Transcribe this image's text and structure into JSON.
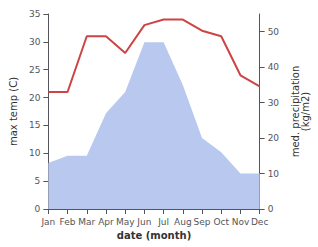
{
  "chart_data": {
    "type": "line",
    "categories": [
      "Jan",
      "Feb",
      "Mar",
      "Apr",
      "May",
      "Jun",
      "Jul",
      "Aug",
      "Sep",
      "Oct",
      "Nov",
      "Dec"
    ],
    "series": [
      {
        "type": "area",
        "color": "#b8c8ee",
        "axis": "y2",
        "values": [
          13,
          15,
          15,
          27,
          33,
          47,
          47,
          35,
          20,
          16,
          10,
          10
        ]
      },
      {
        "type": "line",
        "color": "#cc4444",
        "values": [
          21,
          21,
          31,
          31,
          28,
          33,
          34,
          34,
          32,
          31,
          24,
          22
        ]
      }
    ],
    "xlabel": "date (month)",
    "ylabel": "max temp (C)",
    "y2label": "med. precipitation\n(kg/m2)",
    "ylim": [
      0,
      35
    ],
    "yticks": [
      0,
      5,
      10,
      15,
      20,
      25,
      30,
      35
    ],
    "y2lim": [
      0,
      55
    ],
    "y2ticks": [
      0,
      10,
      20,
      30,
      40,
      50
    ],
    "grid": false,
    "legend": false
  }
}
